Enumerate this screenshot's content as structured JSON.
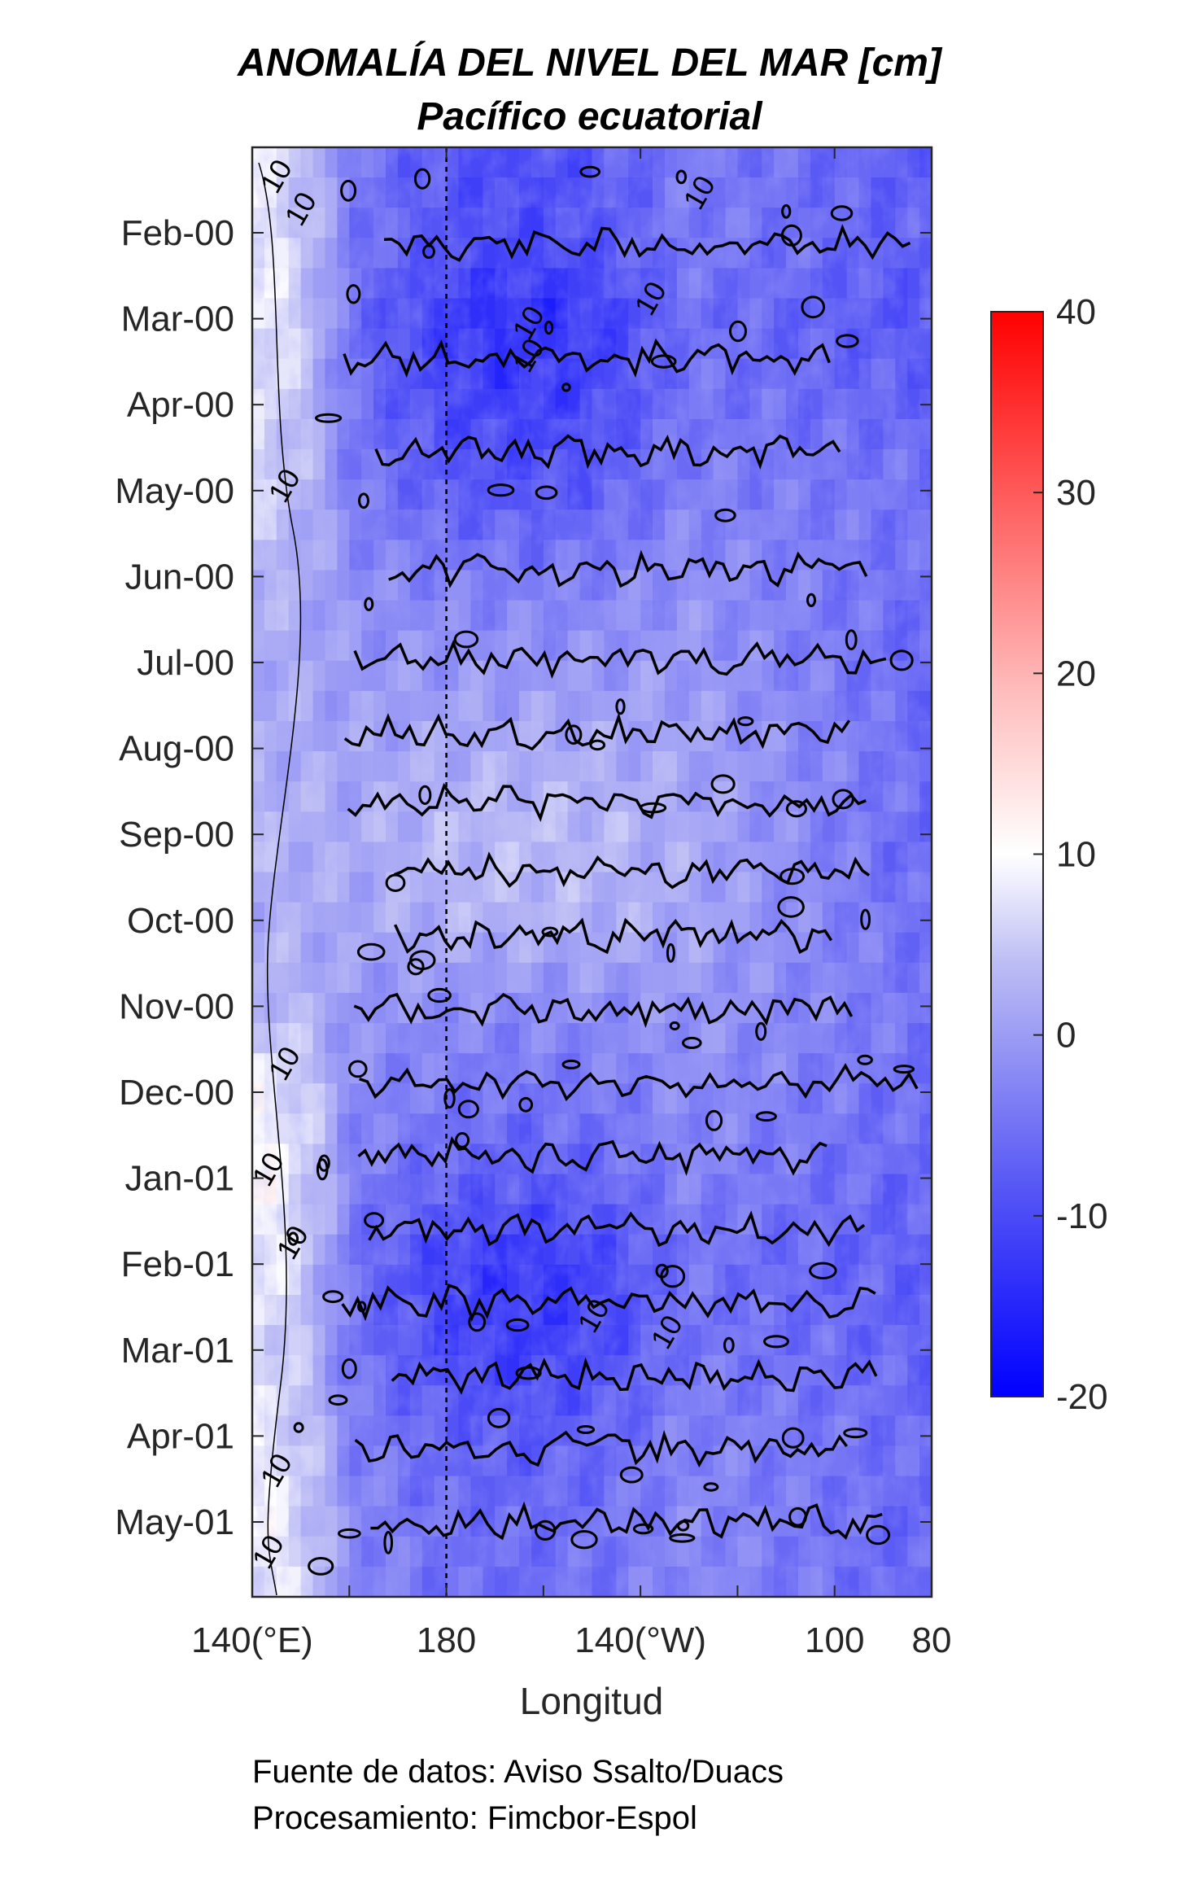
{
  "chart_data": {
    "type": "heatmap",
    "title": "ANOMALÍA DEL NIVEL DEL MAR [cm]",
    "subtitle": "Pacífico ecuatorial",
    "xlabel": "Longitud",
    "ylabel": "",
    "x_ticks": [
      {
        "label": "140(°E)",
        "lon": 140
      },
      {
        "label": "180",
        "lon": 180
      },
      {
        "label": "140(°W)",
        "lon": 220
      },
      {
        "label": "100",
        "lon": 260
      },
      {
        "label": "80",
        "lon": 280
      }
    ],
    "xlim": [
      140,
      280
    ],
    "y_ticks": [
      "Feb-00",
      "Mar-00",
      "Apr-00",
      "May-00",
      "Jun-00",
      "Jul-00",
      "Aug-00",
      "Sep-00",
      "Oct-00",
      "Nov-00",
      "Dec-00",
      "Jan-01",
      "Feb-01",
      "Mar-01",
      "Apr-01",
      "May-01"
    ],
    "date_line_lon": 180,
    "contour_levels": [
      0,
      10
    ],
    "contour_labels": [
      "10",
      "10",
      "10",
      "10",
      "10",
      "10",
      "10",
      "10",
      "10",
      "10",
      "10",
      "10",
      "10",
      "10"
    ],
    "colorbar": {
      "min": -20,
      "max": 40,
      "ticks": [
        "40",
        "30",
        "20",
        "10",
        "0",
        "-10",
        "-20"
      ],
      "colors": [
        "#0000ff",
        "#6e6ef0",
        "#c6c6f5",
        "#ffffff",
        "#ff9a9a",
        "#ff0000"
      ]
    },
    "anomaly_pattern": {
      "western_pacific_140_155E": [
        8,
        9,
        7,
        6,
        3,
        2,
        2,
        3,
        2,
        4,
        9,
        10,
        9,
        7,
        8,
        9
      ],
      "central_160W_140W": [
        -10,
        -14,
        -12,
        -9,
        -4,
        -1,
        2,
        4,
        3,
        -2,
        -5,
        -8,
        -13,
        -12,
        -8,
        -6
      ],
      "eastern_110_80W": [
        -8,
        -9,
        -7,
        -5,
        -6,
        -7,
        -6,
        -7,
        -6,
        -5,
        -6,
        -7,
        -8,
        -7,
        -6,
        -7
      ]
    }
  },
  "footer": {
    "source_line": "Fuente de datos: Aviso Ssalto/Duacs",
    "processing_line": "Procesamiento: Fimcbor-Espol"
  }
}
